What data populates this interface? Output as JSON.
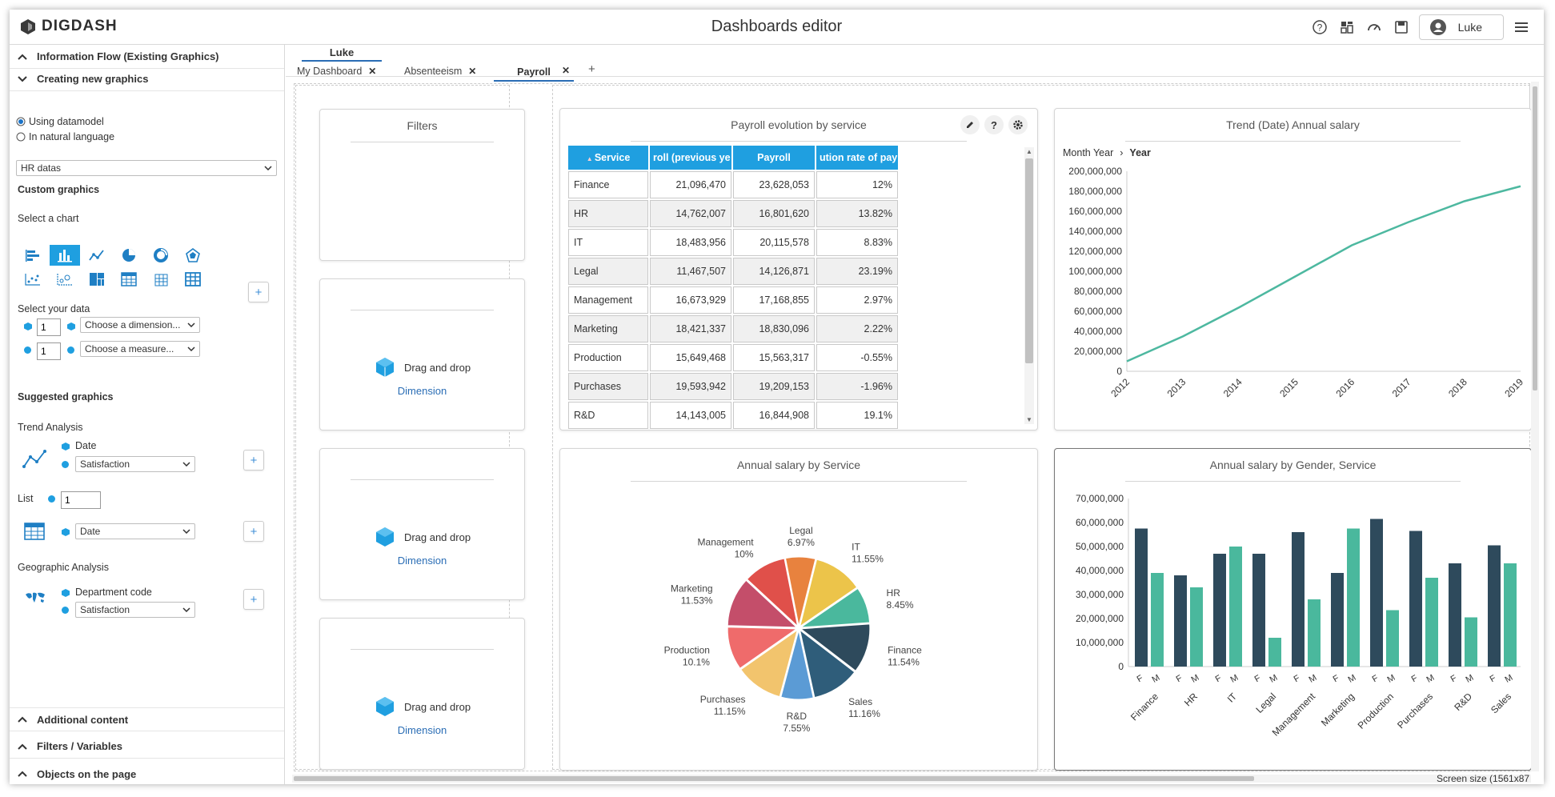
{
  "header": {
    "logo_text": "DIGDASH",
    "title": "Dashboards editor",
    "user_name": "Luke",
    "icons": [
      "help-icon",
      "dashboard-icon",
      "gauge-icon",
      "save-icon",
      "user-icon",
      "menu-icon"
    ]
  },
  "sidebar": {
    "sections_top": [
      {
        "label": "Information Flow (Existing Graphics)",
        "state": "collapsed"
      },
      {
        "label": "Creating new graphics",
        "state": "expanded"
      }
    ],
    "mode_options": [
      "Using datamodel",
      "In natural language"
    ],
    "mode_selected": "Using datamodel",
    "datamodel": "HR datas",
    "custom_graphics_title": "Custom graphics",
    "select_chart_label": "Select a chart",
    "chart_types": [
      "bar-horizontal",
      "bar-vertical",
      "line",
      "pie",
      "donut",
      "radar",
      "scatter",
      "bubble",
      "treemap",
      "table",
      "pivot-grid",
      "heatmap-grid"
    ],
    "active_chart_type": "bar-vertical",
    "select_data_label": "Select your data",
    "dimension": {
      "count": "1",
      "placeholder": "Choose a dimension..."
    },
    "measure": {
      "count": "1",
      "placeholder": "Choose a measure..."
    },
    "suggested_title": "Suggested graphics",
    "trend": {
      "label": "Trend Analysis",
      "dimension": "Date",
      "measure": "Satisfaction"
    },
    "list": {
      "label": "List",
      "count": "1",
      "dimension": "Date"
    },
    "geo": {
      "label": "Geographic Analysis",
      "dimension": "Department code",
      "measure": "Satisfaction"
    },
    "sections_bottom": [
      "Additional content",
      "Filters / Variables",
      "Objects on the page"
    ]
  },
  "tabs": {
    "owner": "Luke",
    "items": [
      {
        "label": "My Dashboard",
        "active": false
      },
      {
        "label": "Absenteeism",
        "active": false
      },
      {
        "label": "Payroll",
        "active": true
      }
    ],
    "add_label": "+"
  },
  "filters_panel": {
    "title": "Filters",
    "drop_text": "Drag and drop",
    "drop_link": "Dimension"
  },
  "payroll_table": {
    "title": "Payroll evolution by service",
    "columns": [
      "Service",
      "Payroll (previous year)",
      "Payroll",
      "Evolution rate of payroll"
    ],
    "column_headers_visible": [
      "Service",
      "roll (previous ye",
      "Payroll",
      "ution rate of pay"
    ],
    "rows": [
      [
        "Finance",
        "21,096,470",
        "23,628,053",
        "12%"
      ],
      [
        "HR",
        "14,762,007",
        "16,801,620",
        "13.82%"
      ],
      [
        "IT",
        "18,483,956",
        "20,115,578",
        "8.83%"
      ],
      [
        "Legal",
        "11,467,507",
        "14,126,871",
        "23.19%"
      ],
      [
        "Management",
        "16,673,929",
        "17,168,855",
        "2.97%"
      ],
      [
        "Marketing",
        "18,421,337",
        "18,830,096",
        "2.22%"
      ],
      [
        "Production",
        "15,649,468",
        "15,563,317",
        "-0.55%"
      ],
      [
        "Purchases",
        "19,593,942",
        "19,209,153",
        "-1.96%"
      ],
      [
        "R&D",
        "14,143,005",
        "16,844,908",
        "19.1%"
      ]
    ]
  },
  "screen_size_text": "Screen size (1561x87",
  "colors": {
    "accent": "#1f9fe0",
    "line": "#4db8a0",
    "dark_bar": "#2e4a5c",
    "teal_bar": "#4ab89d"
  },
  "chart_data": [
    {
      "type": "line",
      "title": "Trend (Date) Annual salary",
      "breadcrumb": [
        "Month Year",
        "Year"
      ],
      "x": [
        "2012",
        "2013",
        "2014",
        "2015",
        "2016",
        "2017",
        "2018",
        "2019"
      ],
      "series": [
        {
          "values": [
            10000000,
            35000000,
            64000000,
            95000000,
            126000000,
            149000000,
            170000000,
            185000000
          ]
        }
      ],
      "yticks": [
        "200,000,000",
        "180,000,000",
        "160,000,000",
        "140,000,000",
        "120,000,000",
        "100,000,000",
        "80,000,000",
        "60,000,000",
        "40,000,000",
        "20,000,000",
        "0"
      ],
      "ylim": [
        0,
        200000000
      ],
      "color": "#4db8a0"
    },
    {
      "type": "pie",
      "title": "Annual salary by Service",
      "slices": [
        {
          "label": "Finance",
          "pct": "11.54%",
          "value": 11.54,
          "color": "#2e4a5c"
        },
        {
          "label": "Sales",
          "pct": "11.16%",
          "value": 11.16,
          "color": "#2f5d7a"
        },
        {
          "label": "R&D",
          "pct": "7.55%",
          "value": 7.55,
          "color": "#5b9bd5"
        },
        {
          "label": "Purchases",
          "pct": "11.15%",
          "value": 11.15,
          "color": "#f2c46d"
        },
        {
          "label": "Production",
          "pct": "10.1%",
          "value": 10.1,
          "color": "#ef6b6b"
        },
        {
          "label": "Marketing",
          "pct": "11.53%",
          "value": 11.53,
          "color": "#c44e6a"
        },
        {
          "label": "Management",
          "pct": "10%",
          "value": 10,
          "color": "#e0504a"
        },
        {
          "label": "Legal",
          "pct": "6.97%",
          "value": 6.97,
          "color": "#e8823e"
        },
        {
          "label": "IT",
          "pct": "11.55%",
          "value": 11.55,
          "color": "#ecc44a"
        },
        {
          "label": "HR",
          "pct": "8.45%",
          "value": 8.45,
          "color": "#4ab89d"
        }
      ]
    },
    {
      "type": "bar",
      "title": "Annual salary by Gender, Service",
      "categories": [
        "Finance",
        "HR",
        "IT",
        "Legal",
        "Management",
        "Marketing",
        "Production",
        "Purchases",
        "R&D",
        "Sales"
      ],
      "sub_categories": [
        "F",
        "M"
      ],
      "series": [
        {
          "values": [
            57500000,
            38000000,
            47000000,
            47000000,
            56000000,
            39000000,
            61500000,
            56500000,
            43000000,
            50500000
          ],
          "color": "#2e4a5c"
        },
        {
          "values": [
            39000000,
            33000000,
            50000000,
            12000000,
            28000000,
            57500000,
            23500000,
            37000000,
            20500000,
            43000000
          ],
          "color": "#4ab89d"
        }
      ],
      "yticks": [
        "70,000,000",
        "60,000,000",
        "50,000,000",
        "40,000,000",
        "30,000,000",
        "20,000,000",
        "10,000,000",
        "0"
      ],
      "ylim": [
        0,
        70000000
      ]
    }
  ]
}
